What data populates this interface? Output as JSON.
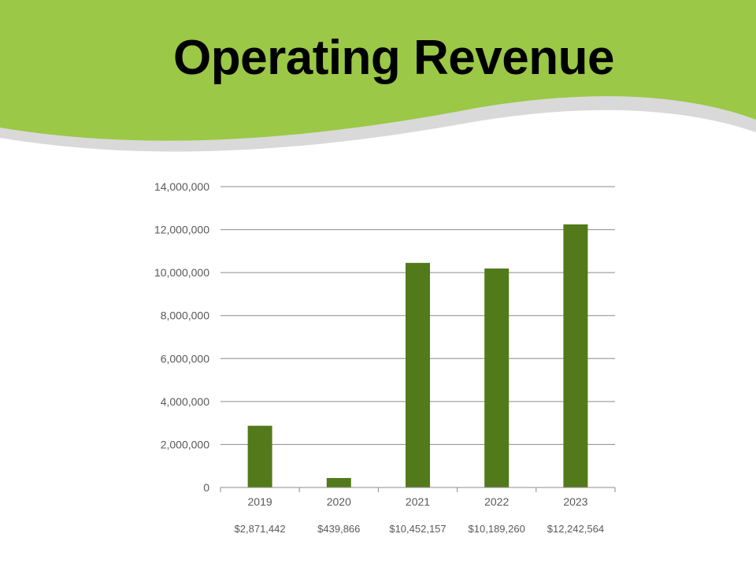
{
  "slide": {
    "title": "Operating Revenue",
    "colors": {
      "header_green": "#9BC846",
      "swoosh_gray": "#D9D9D9",
      "bar": "#537A1A",
      "grid": "#8C8C8C",
      "axis_text": "#595959"
    }
  },
  "chart_data": {
    "type": "bar",
    "categories": [
      "2019",
      "2020",
      "2021",
      "2022",
      "2023"
    ],
    "values": [
      2871442,
      439866,
      10452157,
      10189260,
      12242564
    ],
    "value_labels": [
      "$2,871,442",
      "$439,866",
      "$10,452,157",
      "$10,189,260",
      "$12,242,564"
    ],
    "ylim": [
      0,
      14000000
    ],
    "yticks": [
      0,
      2000000,
      4000000,
      6000000,
      8000000,
      10000000,
      12000000,
      14000000
    ],
    "ytick_labels": [
      "0",
      "2,000,000",
      "4,000,000",
      "6,000,000",
      "8,000,000",
      "10,000,000",
      "12,000,000",
      "14,000,000"
    ],
    "grid": true,
    "legend": false
  }
}
